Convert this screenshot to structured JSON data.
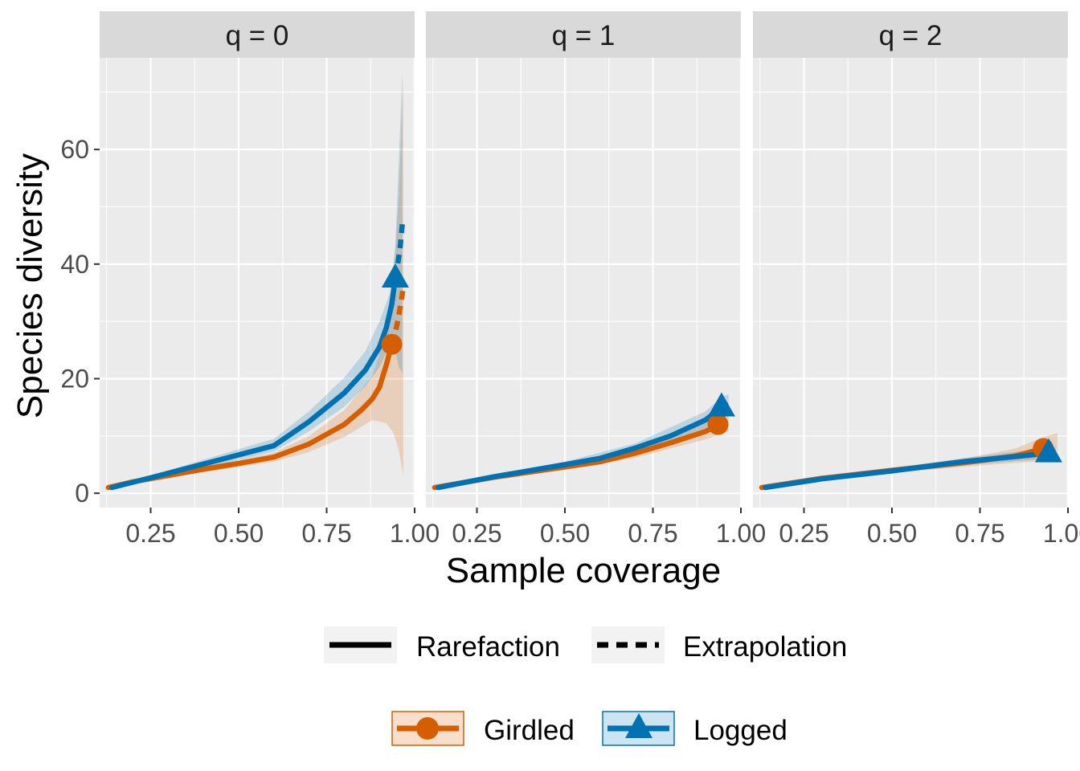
{
  "chart_data": {
    "type": "line",
    "xlabel": "Sample coverage",
    "ylabel": "Species diversity",
    "xlim": [
      0.105,
      1.0
    ],
    "ylim": [
      -2.5,
      76
    ],
    "x_ticks": [
      "0.25",
      "0.50",
      "0.75",
      "1.00"
    ],
    "x_tick_values": [
      0.25,
      0.5,
      0.75,
      1.0
    ],
    "y_ticks": [
      "0",
      "20",
      "40",
      "60"
    ],
    "y_tick_values": [
      0,
      20,
      40,
      60
    ],
    "facets": [
      {
        "strip": "q = 0",
        "series": [
          {
            "name": "Girdled",
            "color": "#D55E00",
            "marker": "circle",
            "observed": {
              "x": 0.935,
              "y": 26
            },
            "rarefaction": {
              "x": [
                0.13,
                0.2,
                0.3,
                0.4,
                0.5,
                0.6,
                0.7,
                0.8,
                0.85,
                0.88,
                0.9,
                0.91,
                0.92,
                0.935
              ],
              "y": [
                1,
                2,
                3.1,
                4.2,
                5.2,
                6.3,
                8.6,
                12,
                14.6,
                16.5,
                18.5,
                20.5,
                22.5,
                26
              ]
            },
            "extrapolation": {
              "x": [
                0.935,
                0.945,
                0.955,
                0.963,
                0.968
              ],
              "y": [
                26,
                28,
                31,
                34,
                36
              ]
            },
            "ci_lower": {
              "x": [
                0.13,
                0.3,
                0.5,
                0.6,
                0.7,
                0.8,
                0.88,
                0.92,
                0.94,
                0.955,
                0.968
              ],
              "y": [
                0.8,
                2.7,
                4.6,
                5.5,
                7.2,
                9.8,
                12.8,
                12.2,
                10.5,
                7.5,
                3
              ]
            },
            "ci_upper": {
              "x": [
                0.13,
                0.3,
                0.5,
                0.6,
                0.7,
                0.8,
                0.88,
                0.92,
                0.94,
                0.955,
                0.968
              ],
              "y": [
                1.2,
                3.6,
                5.8,
                7.1,
                10,
                14.5,
                20.5,
                28,
                38,
                52,
                72
              ]
            }
          },
          {
            "name": "Logged",
            "color": "#0072B2",
            "marker": "triangle",
            "observed": {
              "x": 0.945,
              "y": 37.5
            },
            "rarefaction": {
              "x": [
                0.14,
                0.25,
                0.4,
                0.5,
                0.6,
                0.7,
                0.8,
                0.86,
                0.9,
                0.92,
                0.935,
                0.945
              ],
              "y": [
                1,
                2.7,
                5.1,
                6.7,
                8.3,
                12.5,
                17.5,
                21.5,
                25.5,
                29,
                33,
                37.5
              ]
            },
            "extrapolation": {
              "x": [
                0.945,
                0.952,
                0.958,
                0.962,
                0.965
              ],
              "y": [
                37.5,
                40,
                42.5,
                45,
                47
              ]
            },
            "ci_lower": {
              "x": [
                0.14,
                0.3,
                0.5,
                0.6,
                0.7,
                0.8,
                0.86,
                0.9,
                0.93,
                0.945,
                0.955,
                0.965
              ],
              "y": [
                0.8,
                3,
                5.8,
                7.3,
                10.8,
                15.1,
                18.7,
                22,
                26,
                25,
                22,
                21
              ]
            },
            "ci_upper": {
              "x": [
                0.14,
                0.3,
                0.5,
                0.6,
                0.7,
                0.8,
                0.86,
                0.9,
                0.93,
                0.945,
                0.955,
                0.965
              ],
              "y": [
                1.2,
                4,
                7.7,
                9.5,
                14.3,
                20.2,
                24.8,
                30,
                35,
                43,
                58,
                74
              ]
            }
          }
        ]
      },
      {
        "strip": "q = 1",
        "series": [
          {
            "name": "Girdled",
            "color": "#D55E00",
            "marker": "circle",
            "observed": {
              "x": 0.935,
              "y": 12
            },
            "rarefaction": {
              "x": [
                0.13,
                0.3,
                0.5,
                0.6,
                0.7,
                0.8,
                0.9,
                0.935
              ],
              "y": [
                1,
                2.8,
                4.6,
                5.5,
                7,
                8.8,
                10.8,
                12
              ]
            },
            "extrapolation": {
              "x": [
                0.935,
                0.95,
                0.965
              ],
              "y": [
                12,
                12.6,
                13.3
              ]
            },
            "ci_lower": {
              "x": [
                0.13,
                0.3,
                0.5,
                0.7,
                0.9,
                0.935,
                0.965
              ],
              "y": [
                0.8,
                2.5,
                4.1,
                6.2,
                9.4,
                10.2,
                10.8
              ]
            },
            "ci_upper": {
              "x": [
                0.13,
                0.3,
                0.5,
                0.7,
                0.9,
                0.935,
                0.965
              ],
              "y": [
                1.2,
                3.1,
                5.1,
                7.8,
                12.4,
                13.8,
                15.3
              ]
            }
          },
          {
            "name": "Logged",
            "color": "#0072B2",
            "marker": "triangle",
            "observed": {
              "x": 0.945,
              "y": 15
            },
            "rarefaction": {
              "x": [
                0.14,
                0.3,
                0.5,
                0.6,
                0.7,
                0.8,
                0.9,
                0.945
              ],
              "y": [
                1,
                2.9,
                5,
                6.1,
                7.9,
                10,
                12.8,
                15
              ]
            },
            "extrapolation": {
              "x": [
                0.945,
                0.955,
                0.965
              ],
              "y": [
                15,
                15.2,
                15.4
              ]
            },
            "ci_lower": {
              "x": [
                0.14,
                0.3,
                0.5,
                0.7,
                0.9,
                0.945,
                0.965
              ],
              "y": [
                0.8,
                2.6,
                4.5,
                7.1,
                11.4,
                13.2,
                13.5
              ]
            },
            "ci_upper": {
              "x": [
                0.14,
                0.3,
                0.5,
                0.7,
                0.9,
                0.945,
                0.965
              ],
              "y": [
                1.2,
                3.2,
                5.5,
                8.7,
                14.3,
                16.8,
                17.3
              ]
            }
          }
        ]
      },
      {
        "strip": "q = 2",
        "series": [
          {
            "name": "Girdled",
            "color": "#D55E00",
            "marker": "circle",
            "observed": {
              "x": 0.93,
              "y": 7.8
            },
            "rarefaction": {
              "x": [
                0.13,
                0.3,
                0.5,
                0.7,
                0.85,
                0.93
              ],
              "y": [
                1,
                2.6,
                4,
                5.3,
                6.5,
                7.8
              ]
            },
            "extrapolation": {
              "x": [
                0.93,
                0.95,
                0.97
              ],
              "y": [
                7.8,
                8,
                8.2
              ]
            },
            "ci_lower": {
              "x": [
                0.13,
                0.3,
                0.5,
                0.7,
                0.85,
                0.93,
                0.97
              ],
              "y": [
                0.8,
                2.3,
                3.5,
                4.6,
                5.3,
                5.6,
                5.8
              ]
            },
            "ci_upper": {
              "x": [
                0.13,
                0.3,
                0.5,
                0.7,
                0.85,
                0.93,
                0.97
              ],
              "y": [
                1.2,
                2.9,
                4.5,
                6,
                7.8,
                9.8,
                10.5
              ]
            }
          },
          {
            "name": "Logged",
            "color": "#0072B2",
            "marker": "triangle",
            "observed": {
              "x": 0.945,
              "y": 7
            },
            "rarefaction": {
              "x": [
                0.14,
                0.3,
                0.5,
                0.7,
                0.85,
                0.945
              ],
              "y": [
                1,
                2.5,
                3.9,
                5.5,
                6.4,
                7
              ]
            },
            "extrapolation": {
              "x": [
                0.945,
                0.955,
                0.965
              ],
              "y": [
                7,
                7.05,
                7.1
              ]
            },
            "ci_lower": {
              "x": [
                0.14,
                0.3,
                0.5,
                0.7,
                0.85,
                0.945,
                0.965
              ],
              "y": [
                0.8,
                2.2,
                3.5,
                4.9,
                5.6,
                6,
                6.1
              ]
            },
            "ci_upper": {
              "x": [
                0.14,
                0.3,
                0.5,
                0.7,
                0.85,
                0.945,
                0.965
              ],
              "y": [
                1.2,
                2.8,
                4.3,
                6.1,
                7.2,
                8,
                8.1
              ]
            }
          }
        ]
      }
    ],
    "legend": {
      "line_types": [
        {
          "label": "Rarefaction",
          "style": "solid"
        },
        {
          "label": "Extrapolation",
          "style": "dashed"
        }
      ],
      "groups": [
        {
          "label": "Girdled",
          "color": "#D55E00",
          "marker": "circle"
        },
        {
          "label": "Logged",
          "color": "#0072B2",
          "marker": "triangle"
        }
      ],
      "position": "bottom"
    }
  }
}
